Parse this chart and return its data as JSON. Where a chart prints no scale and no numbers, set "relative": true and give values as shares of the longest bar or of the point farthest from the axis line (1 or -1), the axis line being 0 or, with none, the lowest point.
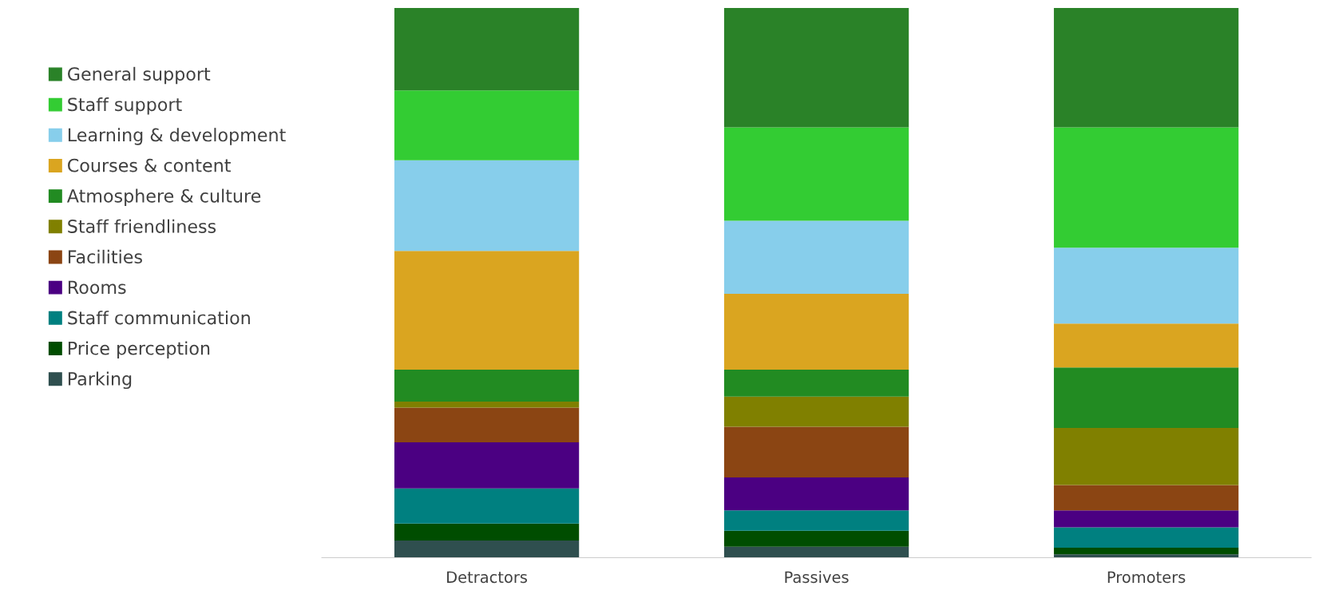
{
  "chart_data": {
    "type": "bar",
    "stacked": true,
    "relative": true,
    "legend": "left",
    "grid": false,
    "categories": [
      "Detractors",
      "Passives",
      "Promoters"
    ],
    "series": [
      {
        "name": "Parking",
        "color": "#2f4f4f",
        "values": [
          0.031,
          0.02,
          0.006
        ]
      },
      {
        "name": "Price perception",
        "color": "#004d00",
        "values": [
          0.031,
          0.029,
          0.012
        ]
      },
      {
        "name": "Staff communication",
        "color": "#008080",
        "values": [
          0.064,
          0.037,
          0.037
        ]
      },
      {
        "name": "Rooms",
        "color": "#4b0082",
        "values": [
          0.084,
          0.06,
          0.031
        ]
      },
      {
        "name": "Facilities",
        "color": "#8b4513",
        "values": [
          0.063,
          0.092,
          0.046
        ]
      },
      {
        "name": "Staff friendliness",
        "color": "#808000",
        "values": [
          0.011,
          0.055,
          0.104
        ]
      },
      {
        "name": "Atmosphere & culture",
        "color": "#228b22",
        "values": [
          0.058,
          0.049,
          0.11
        ]
      },
      {
        "name": "Courses & content",
        "color": "#daa520",
        "values": [
          0.216,
          0.138,
          0.08
        ]
      },
      {
        "name": "Learning & development",
        "color": "#87ceeb",
        "values": [
          0.165,
          0.133,
          0.138
        ]
      },
      {
        "name": "Staff support",
        "color": "#33cc33",
        "values": [
          0.127,
          0.17,
          0.219
        ]
      },
      {
        "name": "General support",
        "color": "#2a8228",
        "values": [
          0.15,
          0.217,
          0.217
        ]
      }
    ]
  }
}
